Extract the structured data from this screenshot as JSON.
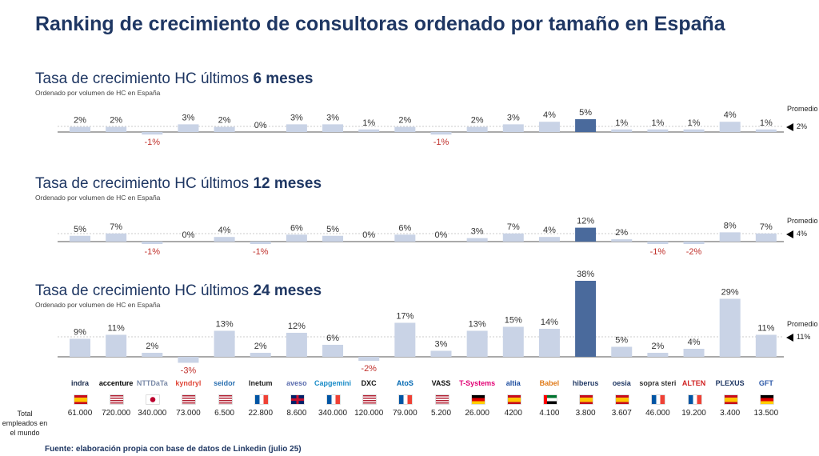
{
  "title": "Ranking de crecimiento de consultoras ordenado por tamaño en España",
  "sections": [
    {
      "title_prefix": "Tasa de crecimiento HC últimos ",
      "title_bold": "6 meses",
      "subtitle": "Ordenado por volumen de HC en España",
      "promedio_label": "Promedio",
      "promedio_value": "2%"
    },
    {
      "title_prefix": "Tasa de crecimiento HC últimos ",
      "title_bold": "12 meses",
      "subtitle": "Ordenado por volumen de HC en España",
      "promedio_label": "Promedio",
      "promedio_value": "4%"
    },
    {
      "title_prefix": "Tasa de crecimiento HC últimos ",
      "title_bold": "24 meses",
      "subtitle": "Ordenado por volumen de HC en España",
      "promedio_label": "Promedio",
      "promedio_value": "11%"
    }
  ],
  "chart_data": [
    {
      "type": "bar",
      "title": "Tasa de crecimiento HC últimos 6 meses",
      "unit": "%",
      "average": 2,
      "highlight_index": 14,
      "categories": [
        "indra",
        "accenture",
        "NTT DATA",
        "kyndryl",
        "seidor",
        "Inetum",
        "aveso",
        "Capgemini",
        "DXC",
        "Atos",
        "VASS",
        "T-Systems",
        "altia",
        "Babel",
        "hiberus",
        "oesia",
        "sopra steria",
        "ALTEN",
        "PLEXUS",
        "GFT"
      ],
      "values": [
        2,
        2,
        -1,
        3,
        2,
        0,
        3,
        3,
        1,
        2,
        -1,
        2,
        3,
        4,
        5,
        1,
        1,
        1,
        4,
        1
      ]
    },
    {
      "type": "bar",
      "title": "Tasa de crecimiento HC últimos 12 meses",
      "unit": "%",
      "average": 4,
      "highlight_index": 14,
      "categories": [
        "indra",
        "accenture",
        "NTT DATA",
        "kyndryl",
        "seidor",
        "Inetum",
        "aveso",
        "Capgemini",
        "DXC",
        "Atos",
        "VASS",
        "T-Systems",
        "altia",
        "Babel",
        "hiberus",
        "oesia",
        "sopra steria",
        "ALTEN",
        "PLEXUS",
        "GFT"
      ],
      "values": [
        5,
        7,
        -1,
        0,
        4,
        -1,
        6,
        5,
        0,
        6,
        0,
        3,
        7,
        4,
        12,
        2,
        -1,
        -2,
        8,
        7
      ]
    },
    {
      "type": "bar",
      "title": "Tasa de crecimiento HC últimos 24 meses",
      "unit": "%",
      "average": 11,
      "highlight_index": 14,
      "categories": [
        "indra",
        "accenture",
        "NTT DATA",
        "kyndryl",
        "seidor",
        "Inetum",
        "aveso",
        "Capgemini",
        "DXC",
        "Atos",
        "VASS",
        "T-Systems",
        "altia",
        "Babel",
        "hiberus",
        "oesia",
        "sopra steria",
        "ALTEN",
        "PLEXUS",
        "GFT"
      ],
      "values": [
        9,
        11,
        2,
        -3,
        13,
        2,
        12,
        6,
        -2,
        17,
        3,
        13,
        15,
        14,
        38,
        5,
        2,
        4,
        29,
        11
      ]
    }
  ],
  "companies": [
    {
      "name": "indra",
      "color": "#1a2b4c",
      "flag": "spain-flag",
      "employees": "61.000"
    },
    {
      "name": "accenture",
      "color": "#000000",
      "flag": "usa-flag",
      "employees": "720.000"
    },
    {
      "name": "NTTDaTa",
      "color": "#7a8aa8",
      "flag": "japan-flag",
      "employees": "340.000"
    },
    {
      "name": "kyndryl",
      "color": "#e0493b",
      "flag": "usa-flag",
      "employees": "73.000"
    },
    {
      "name": "seidor",
      "color": "#2a6fb0",
      "flag": "usa-flag",
      "employees": "6.500"
    },
    {
      "name": "Inetum",
      "color": "#222222",
      "flag": "france-flag",
      "employees": "22.800"
    },
    {
      "name": "aveso",
      "color": "#5a6cae",
      "flag": "uk-flag",
      "employees": "8.600"
    },
    {
      "name": "Capgemini",
      "color": "#1a8cc8",
      "flag": "france-flag",
      "employees": "340.000"
    },
    {
      "name": "DXC",
      "color": "#111111",
      "flag": "usa-flag",
      "employees": "120.000"
    },
    {
      "name": "AtoS",
      "color": "#0067b1",
      "flag": "france-flag",
      "employees": "79.000"
    },
    {
      "name": "VASS",
      "color": "#111111",
      "flag": "usa-flag",
      "employees": "5.200"
    },
    {
      "name": "T-Systems",
      "color": "#e20074",
      "flag": "germany-flag",
      "employees": "26.000"
    },
    {
      "name": "altia",
      "color": "#1f4fa0",
      "flag": "spain-flag",
      "employees": "4200"
    },
    {
      "name": "Babel",
      "color": "#e07b1a",
      "flag": "uae-flag",
      "employees": "4.100"
    },
    {
      "name": "hiberus",
      "color": "#1f3763",
      "flag": "spain-flag",
      "employees": "3.800"
    },
    {
      "name": "oesia",
      "color": "#1f3763",
      "flag": "spain-flag",
      "employees": "3.607"
    },
    {
      "name": "sopra steria",
      "color": "#333333",
      "flag": "france-flag",
      "employees": "46.000"
    },
    {
      "name": "ALTEN",
      "color": "#d02020",
      "flag": "france-flag",
      "employees": "19.200"
    },
    {
      "name": "PLEXUS",
      "color": "#1f3763",
      "flag": "spain-flag",
      "employees": "3.400"
    },
    {
      "name": "GFT",
      "color": "#2e5aa8",
      "flag": "germany-flag",
      "employees": "13.500"
    }
  ],
  "employees_label": "Total empleados en el mundo",
  "source": "Fuente: elaboración propia con base de datos de Linkedin (julio 25)",
  "colors": {
    "bar": "#c9d3e6",
    "highlight": "#4a6a9c",
    "negative_label": "#c0302b",
    "label": "#333333",
    "title": "#1f3763"
  }
}
